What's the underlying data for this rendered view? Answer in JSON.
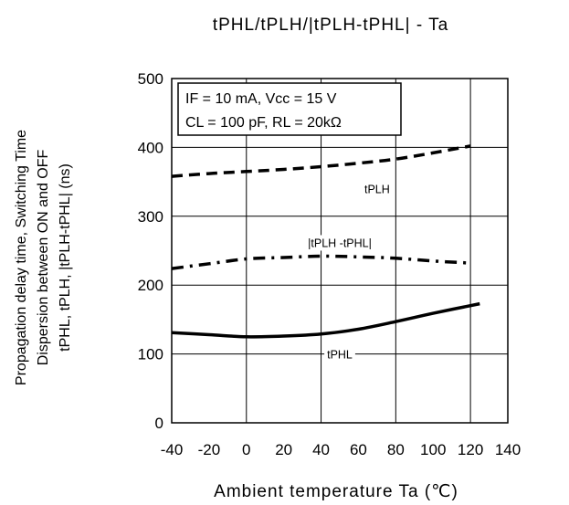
{
  "chart_data": {
    "type": "line",
    "title": "tPHL/tPLH/|tPLH-tPHL| - Ta",
    "xlabel": "Ambient temperature Ta (℃)",
    "ylabel_lines": [
      "Propagation delay time, Switching Time",
      "Dispersion between ON and OFF",
      "tPHL, tPLH, |tPLH-tPHL| (ns)"
    ],
    "xlim": [
      -40,
      140
    ],
    "ylim": [
      0,
      500
    ],
    "xticks": [
      -40,
      -20,
      0,
      20,
      40,
      60,
      80,
      100,
      120,
      140
    ],
    "yticks": [
      0,
      100,
      200,
      300,
      400,
      500
    ],
    "grid": true,
    "conditions": [
      "IF = 10 mA, Vcc = 15 V",
      "CL = 100 pF, RL = 20kΩ"
    ],
    "series": [
      {
        "name": "tPLH",
        "style": "dashed",
        "x": [
          -40,
          -20,
          0,
          20,
          40,
          60,
          80,
          100,
          120
        ],
        "y": [
          358,
          362,
          365,
          368,
          372,
          377,
          383,
          392,
          402
        ]
      },
      {
        "name": "|tPLH -tPHL|",
        "style": "dash-dot",
        "x": [
          -40,
          -20,
          0,
          20,
          40,
          60,
          80,
          100,
          120
        ],
        "y": [
          224,
          231,
          238,
          240,
          242,
          241,
          239,
          235,
          232
        ]
      },
      {
        "name": "tPHL",
        "style": "solid",
        "x": [
          -40,
          -20,
          0,
          20,
          40,
          60,
          80,
          100,
          125
        ],
        "y": [
          131,
          128,
          125,
          126,
          129,
          136,
          147,
          159,
          173
        ]
      }
    ]
  }
}
